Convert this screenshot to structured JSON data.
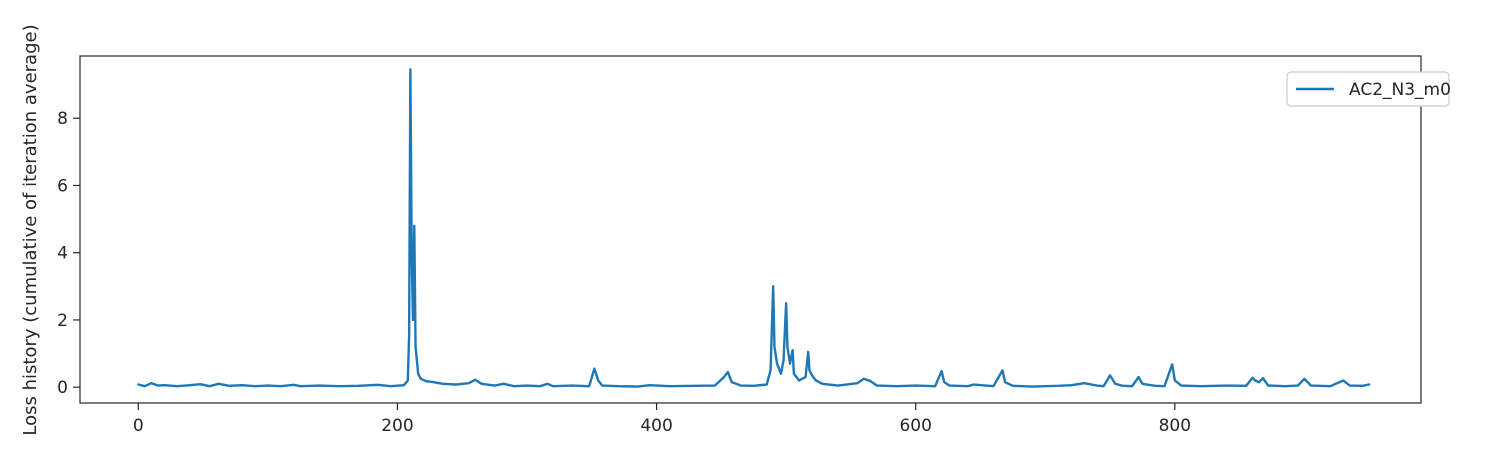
{
  "chart_data": {
    "type": "line",
    "title": "",
    "xlabel": "",
    "ylabel": "Loss history (cumulative of iteration average)",
    "xlim": [
      -45,
      990
    ],
    "ylim": [
      -0.47,
      9.85
    ],
    "xticks": [
      0,
      200,
      400,
      600,
      800
    ],
    "xtick_labels": [
      "0",
      "200",
      "400",
      "600",
      "800"
    ],
    "yticks": [
      0,
      2,
      4,
      6,
      8
    ],
    "ytick_labels": [
      "0",
      "2",
      "4",
      "6",
      "8"
    ],
    "grid": false,
    "legend": {
      "position": "top-right",
      "entries": [
        "AC2_N3_m0"
      ]
    },
    "series": [
      {
        "name": "AC2_N3_m0",
        "color": "#1f77b4",
        "points": [
          [
            0,
            0.08
          ],
          [
            5,
            0.03
          ],
          [
            10,
            0.12
          ],
          [
            15,
            0.05
          ],
          [
            20,
            0.06
          ],
          [
            30,
            0.03
          ],
          [
            40,
            0.06
          ],
          [
            48,
            0.09
          ],
          [
            55,
            0.03
          ],
          [
            62,
            0.1
          ],
          [
            70,
            0.04
          ],
          [
            80,
            0.06
          ],
          [
            90,
            0.03
          ],
          [
            100,
            0.05
          ],
          [
            110,
            0.03
          ],
          [
            120,
            0.07
          ],
          [
            125,
            0.03
          ],
          [
            140,
            0.05
          ],
          [
            155,
            0.03
          ],
          [
            170,
            0.04
          ],
          [
            185,
            0.07
          ],
          [
            195,
            0.03
          ],
          [
            205,
            0.06
          ],
          [
            208,
            0.2
          ],
          [
            209,
            1.5
          ],
          [
            210,
            9.45
          ],
          [
            211,
            4.0
          ],
          [
            212,
            2.0
          ],
          [
            213,
            4.8
          ],
          [
            214,
            1.2
          ],
          [
            216,
            0.4
          ],
          [
            218,
            0.25
          ],
          [
            222,
            0.18
          ],
          [
            228,
            0.15
          ],
          [
            235,
            0.1
          ],
          [
            245,
            0.08
          ],
          [
            255,
            0.12
          ],
          [
            260,
            0.22
          ],
          [
            265,
            0.1
          ],
          [
            275,
            0.05
          ],
          [
            282,
            0.1
          ],
          [
            290,
            0.03
          ],
          [
            300,
            0.05
          ],
          [
            310,
            0.03
          ],
          [
            316,
            0.1
          ],
          [
            320,
            0.03
          ],
          [
            335,
            0.05
          ],
          [
            348,
            0.03
          ],
          [
            352,
            0.55
          ],
          [
            355,
            0.2
          ],
          [
            358,
            0.05
          ],
          [
            370,
            0.03
          ],
          [
            385,
            0.02
          ],
          [
            395,
            0.06
          ],
          [
            410,
            0.03
          ],
          [
            430,
            0.04
          ],
          [
            445,
            0.05
          ],
          [
            452,
            0.3
          ],
          [
            455,
            0.45
          ],
          [
            458,
            0.15
          ],
          [
            465,
            0.05
          ],
          [
            475,
            0.04
          ],
          [
            485,
            0.08
          ],
          [
            488,
            0.5
          ],
          [
            490,
            3.0
          ],
          [
            491,
            1.2
          ],
          [
            493,
            0.7
          ],
          [
            496,
            0.4
          ],
          [
            498,
            0.8
          ],
          [
            500,
            2.5
          ],
          [
            501,
            1.2
          ],
          [
            503,
            0.7
          ],
          [
            505,
            1.1
          ],
          [
            506,
            0.4
          ],
          [
            510,
            0.2
          ],
          [
            515,
            0.3
          ],
          [
            517,
            1.05
          ],
          [
            518,
            0.5
          ],
          [
            520,
            0.35
          ],
          [
            523,
            0.2
          ],
          [
            528,
            0.1
          ],
          [
            540,
            0.05
          ],
          [
            555,
            0.12
          ],
          [
            560,
            0.25
          ],
          [
            565,
            0.18
          ],
          [
            570,
            0.05
          ],
          [
            585,
            0.03
          ],
          [
            600,
            0.05
          ],
          [
            615,
            0.03
          ],
          [
            620,
            0.48
          ],
          [
            622,
            0.15
          ],
          [
            626,
            0.05
          ],
          [
            640,
            0.03
          ],
          [
            645,
            0.08
          ],
          [
            660,
            0.03
          ],
          [
            667,
            0.5
          ],
          [
            669,
            0.15
          ],
          [
            675,
            0.04
          ],
          [
            690,
            0.02
          ],
          [
            710,
            0.04
          ],
          [
            720,
            0.06
          ],
          [
            730,
            0.12
          ],
          [
            740,
            0.05
          ],
          [
            745,
            0.03
          ],
          [
            750,
            0.35
          ],
          [
            754,
            0.1
          ],
          [
            760,
            0.04
          ],
          [
            767,
            0.03
          ],
          [
            772,
            0.3
          ],
          [
            775,
            0.1
          ],
          [
            785,
            0.04
          ],
          [
            792,
            0.03
          ],
          [
            798,
            0.68
          ],
          [
            800,
            0.2
          ],
          [
            805,
            0.05
          ],
          [
            820,
            0.03
          ],
          [
            840,
            0.05
          ],
          [
            855,
            0.04
          ],
          [
            860,
            0.28
          ],
          [
            862,
            0.2
          ],
          [
            865,
            0.15
          ],
          [
            868,
            0.27
          ],
          [
            872,
            0.05
          ],
          [
            885,
            0.03
          ],
          [
            895,
            0.05
          ],
          [
            900,
            0.25
          ],
          [
            905,
            0.05
          ],
          [
            920,
            0.03
          ],
          [
            930,
            0.2
          ],
          [
            935,
            0.05
          ],
          [
            945,
            0.04
          ],
          [
            950,
            0.08
          ]
        ]
      }
    ]
  }
}
